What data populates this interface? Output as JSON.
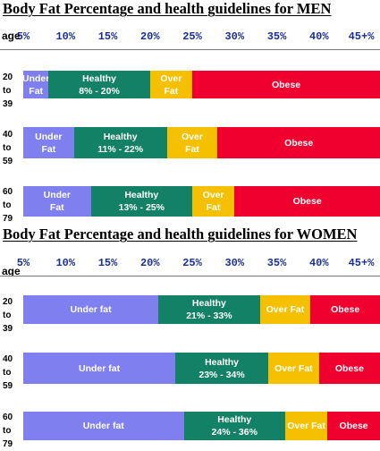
{
  "colors": {
    "under": "#7f7ff0",
    "healthy": "#128165",
    "over": "#f5c000",
    "obese": "#f0002e",
    "tick_text": "#1a2f96"
  },
  "chart_data": [
    {
      "type": "bar",
      "orientation": "horizontal-stacked",
      "title": "Body Fat Percentage and health guidelines for MEN",
      "x_ticks": [
        "5%",
        "10%",
        "15%",
        "20%",
        "25%",
        "30%",
        "35%",
        "40%",
        "45+%"
      ],
      "xlim": [
        5,
        45
      ],
      "age_header": "age",
      "rows": [
        {
          "age_lines": [
            "20",
            "to",
            "39"
          ],
          "segments": [
            {
              "category": "under",
              "lines": [
                "Under",
                "Fat"
              ],
              "start": 5,
              "end": 8
            },
            {
              "category": "healthy",
              "lines": [
                "Healthy",
                "8% - 20%"
              ],
              "start": 8,
              "end": 20
            },
            {
              "category": "over",
              "lines": [
                "Over",
                "Fat"
              ],
              "start": 20,
              "end": 25
            },
            {
              "category": "obese",
              "lines": [
                "Obese"
              ],
              "start": 25,
              "end": 45
            }
          ]
        },
        {
          "age_lines": [
            "40",
            "to",
            "59"
          ],
          "segments": [
            {
              "category": "under",
              "lines": [
                "Under",
                "Fat"
              ],
              "start": 5,
              "end": 11
            },
            {
              "category": "healthy",
              "lines": [
                "Healthy",
                "11% - 22%"
              ],
              "start": 11,
              "end": 22
            },
            {
              "category": "over",
              "lines": [
                "Over",
                "Fat"
              ],
              "start": 22,
              "end": 28
            },
            {
              "category": "obese",
              "lines": [
                "Obese"
              ],
              "start": 28,
              "end": 45
            }
          ]
        },
        {
          "age_lines": [
            "60",
            "to",
            "79"
          ],
          "segments": [
            {
              "category": "under",
              "lines": [
                "Under",
                "Fat"
              ],
              "start": 5,
              "end": 13
            },
            {
              "category": "healthy",
              "lines": [
                "Healthy",
                "13% - 25%"
              ],
              "start": 13,
              "end": 25
            },
            {
              "category": "over",
              "lines": [
                "Over",
                "Fat"
              ],
              "start": 25,
              "end": 30
            },
            {
              "category": "obese",
              "lines": [
                "Obese"
              ],
              "start": 30,
              "end": 45
            }
          ]
        }
      ]
    },
    {
      "type": "bar",
      "orientation": "horizontal-stacked",
      "title": "Body Fat Percentage and health guidelines for WOMEN",
      "x_ticks": [
        "5%",
        "10%",
        "15%",
        "20%",
        "25%",
        "30%",
        "35%",
        "40%",
        "45+%"
      ],
      "xlim": [
        5,
        45
      ],
      "age_header": "age",
      "rows": [
        {
          "age_lines": [
            "20",
            "to",
            "39"
          ],
          "segments": [
            {
              "category": "under",
              "lines": [
                "Under fat"
              ],
              "start": 5,
              "end": 21
            },
            {
              "category": "healthy",
              "lines": [
                "Healthy",
                "21% - 33%"
              ],
              "start": 21,
              "end": 33
            },
            {
              "category": "over",
              "lines": [
                "Over Fat"
              ],
              "start": 33,
              "end": 39
            },
            {
              "category": "obese",
              "lines": [
                "Obese"
              ],
              "start": 39,
              "end": 45
            }
          ]
        },
        {
          "age_lines": [
            "40",
            "to",
            "59"
          ],
          "segments": [
            {
              "category": "under",
              "lines": [
                "Under fat"
              ],
              "start": 5,
              "end": 23
            },
            {
              "category": "healthy",
              "lines": [
                "Healthy",
                "23% - 34%"
              ],
              "start": 23,
              "end": 34
            },
            {
              "category": "over",
              "lines": [
                "Over Fat"
              ],
              "start": 34,
              "end": 40
            },
            {
              "category": "obese",
              "lines": [
                "Obese"
              ],
              "start": 40,
              "end": 45
            }
          ]
        },
        {
          "age_lines": [
            "60",
            "to",
            "79"
          ],
          "segments": [
            {
              "category": "under",
              "lines": [
                "Under fat"
              ],
              "start": 5,
              "end": 24
            },
            {
              "category": "healthy",
              "lines": [
                "Healthy",
                "24% - 36%"
              ],
              "start": 24,
              "end": 36
            },
            {
              "category": "over",
              "lines": [
                "Over Fat"
              ],
              "start": 36,
              "end": 41
            },
            {
              "category": "obese",
              "lines": [
                "Obese"
              ],
              "start": 41,
              "end": 45
            }
          ]
        }
      ]
    }
  ]
}
